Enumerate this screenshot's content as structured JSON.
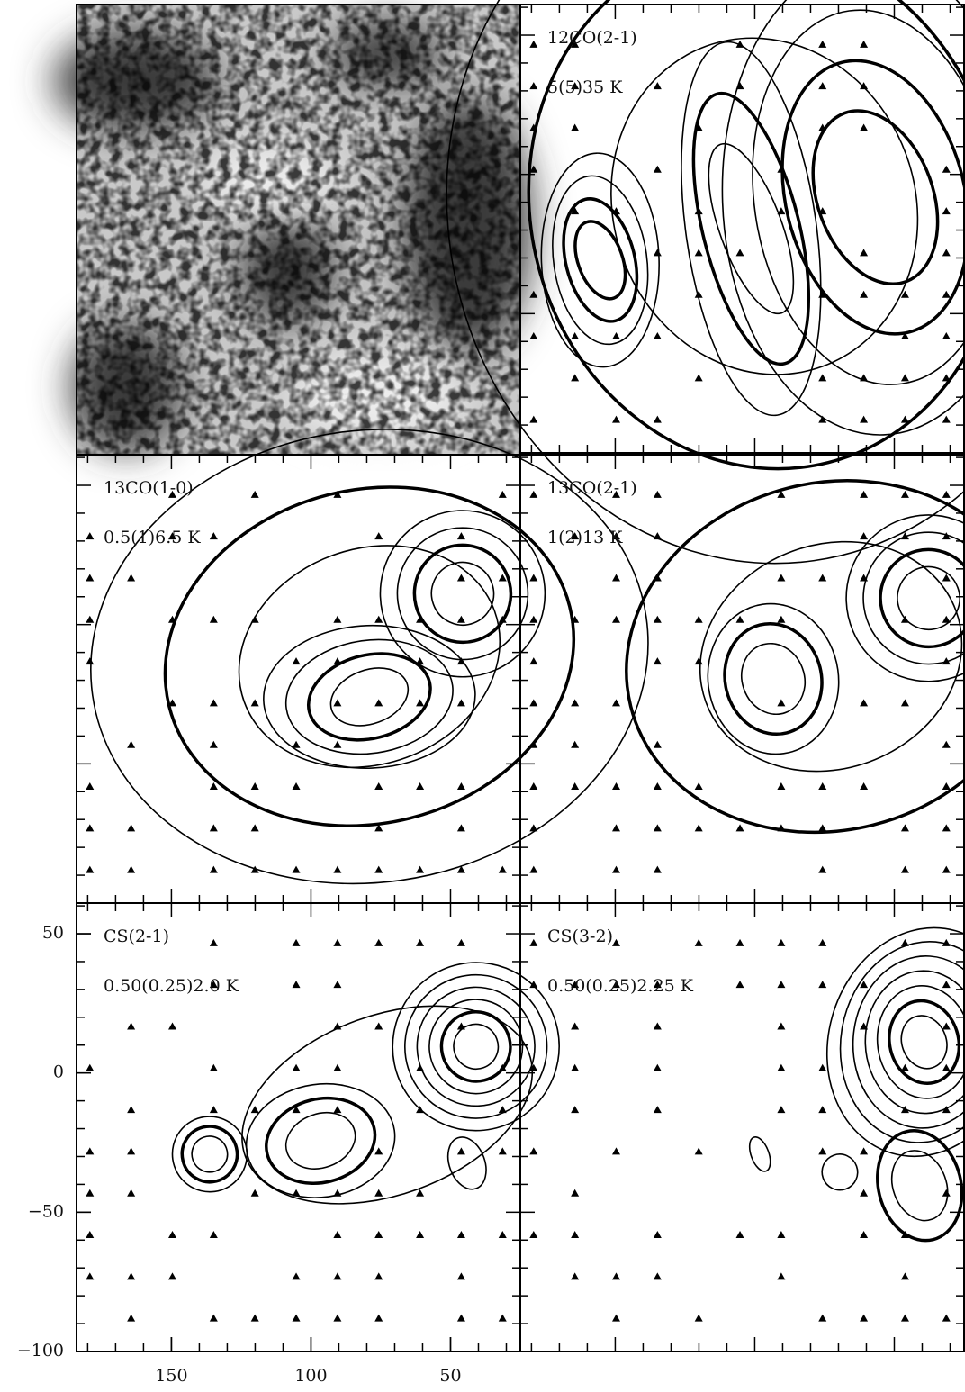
{
  "panels": [
    {
      "title": "12CO(2-1)",
      "levels": "5(5)35 K"
    },
    {
      "title": "13CO(1-0)",
      "levels": "0.5(1)6.5 K"
    },
    {
      "title": "13CO(2-1)",
      "levels": "1(2)13 K"
    },
    {
      "title": "CS(2-1)",
      "levels": "0.50(0.25)2.0 K"
    },
    {
      "title": "CS(3-2)",
      "levels": "0.50(0.25)2.25 K"
    }
  ],
  "axes": {
    "xlim": [
      184,
      25
    ],
    "ylim": [
      -100,
      61
    ],
    "xticks": [
      150,
      100,
      50
    ],
    "yticks": [
      50,
      0,
      {
        "value": -50,
        "label": "−50"
      },
      {
        "value": -100,
        "label": "−100"
      }
    ]
  }
}
